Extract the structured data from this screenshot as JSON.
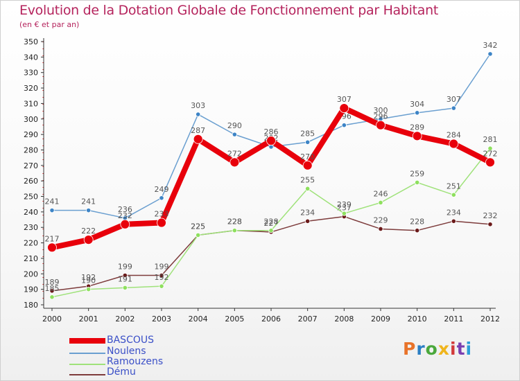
{
  "title": "Evolution de la Dotation Globale de Fonctionnement par Habitant",
  "subtitle": "(en € et par an)",
  "logo_text": "Proxiti",
  "colors": {
    "title": "#b5245d",
    "legend_text": "#3a4fc7",
    "bascous": "#e8000b",
    "noulens": "#6a9fd0",
    "ramouzens": "#9fe27a",
    "demu": "#7d3b3b"
  },
  "chart_data": {
    "type": "line",
    "x": [
      "2000",
      "2001",
      "2002",
      "2003",
      "2004",
      "2005",
      "2006",
      "2007",
      "2008",
      "2009",
      "2010",
      "2011",
      "2012"
    ],
    "ylim": [
      180,
      350
    ],
    "yticks": [
      180,
      190,
      200,
      210,
      220,
      230,
      240,
      250,
      260,
      270,
      280,
      290,
      300,
      310,
      320,
      330,
      340,
      350
    ],
    "grid": false,
    "legend_position": "bottom-left",
    "series": [
      {
        "name": "BASCOUS",
        "values": [
          217,
          222,
          232,
          233,
          287,
          272,
          286,
          270,
          307,
          296,
          289,
          284,
          272
        ]
      },
      {
        "name": "Noulens",
        "values": [
          241,
          241,
          236,
          249,
          303,
          290,
          282,
          285,
          296,
          300,
          304,
          307,
          342
        ]
      },
      {
        "name": "Ramouzens",
        "values": [
          185,
          190,
          191,
          192,
          225,
          228,
          228,
          255,
          239,
          246,
          259,
          251,
          281
        ]
      },
      {
        "name": "Dému",
        "values": [
          189,
          192,
          199,
          199,
          225,
          228,
          227,
          234,
          237,
          229,
          228,
          234,
          232
        ]
      }
    ]
  }
}
